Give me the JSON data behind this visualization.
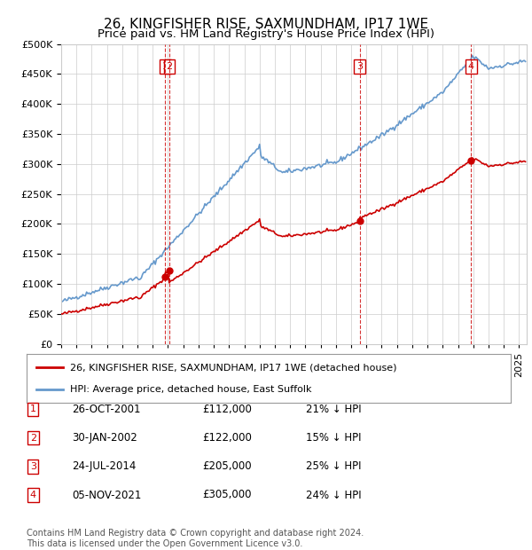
{
  "title": "26, KINGFISHER RISE, SAXMUNDHAM, IP17 1WE",
  "subtitle": "Price paid vs. HM Land Registry's House Price Index (HPI)",
  "ylim": [
    0,
    500000
  ],
  "yticks": [
    0,
    50000,
    100000,
    150000,
    200000,
    250000,
    300000,
    350000,
    400000,
    450000,
    500000
  ],
  "xlim_start": 1995.0,
  "xlim_end": 2025.5,
  "legend_label_red": "26, KINGFISHER RISE, SAXMUNDHAM, IP17 1WE (detached house)",
  "legend_label_blue": "HPI: Average price, detached house, East Suffolk",
  "transactions": [
    {
      "num": 1,
      "date_label": "26-OCT-2001",
      "date_x": 2001.82,
      "price": 112000
    },
    {
      "num": 2,
      "date_label": "30-JAN-2002",
      "date_x": 2002.08,
      "price": 122000
    },
    {
      "num": 3,
      "date_label": "24-JUL-2014",
      "date_x": 2014.56,
      "price": 205000
    },
    {
      "num": 4,
      "date_label": "05-NOV-2021",
      "date_x": 2021.85,
      "price": 305000
    }
  ],
  "table_rows": [
    {
      "num": 1,
      "date": "26-OCT-2001",
      "price": "£112,000",
      "info": "21% ↓ HPI"
    },
    {
      "num": 2,
      "date": "30-JAN-2002",
      "price": "£122,000",
      "info": "15% ↓ HPI"
    },
    {
      "num": 3,
      "date": "24-JUL-2014",
      "price": "£205,000",
      "info": "25% ↓ HPI"
    },
    {
      "num": 4,
      "date": "05-NOV-2021",
      "price": "£305,000",
      "info": "24% ↓ HPI"
    }
  ],
  "footer": "Contains HM Land Registry data © Crown copyright and database right 2024.\nThis data is licensed under the Open Government Licence v3.0.",
  "red_color": "#cc0000",
  "blue_color": "#6699cc",
  "grid_color": "#cccccc",
  "background_color": "#ffffff",
  "title_fontsize": 11,
  "subtitle_fontsize": 9.5,
  "axis_fontsize": 8.0,
  "legend_fontsize": 8,
  "table_fontsize": 8.5,
  "footer_fontsize": 7
}
